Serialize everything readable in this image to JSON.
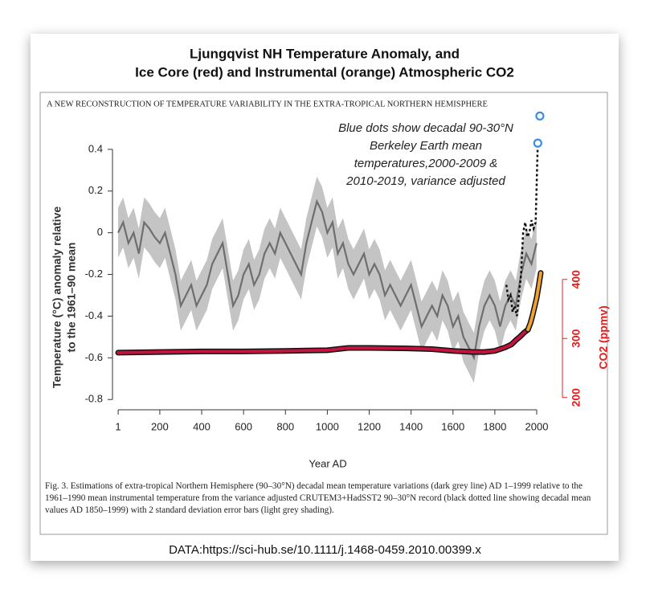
{
  "chart_data": {
    "type": "line",
    "title": [
      "Ljungqvist NH Temperature Anomaly, and",
      "Ice Core (red) and Instrumental (orange) Atmospheric CO2"
    ],
    "header": "A NEW RECONSTRUCTION OF TEMPERATURE VARIABILITY IN THE EXTRA-TROPICAL NORTHERN HEMISPHERE",
    "annotation": [
      "Blue dots show decadal 90-30°N",
      "Berkeley Earth mean",
      "temperatures,2000-2009 &",
      "2010-2019, variance adjusted"
    ],
    "ylabel": [
      "Temperature (°C) anomaly relative",
      "to the 1961–90 mean"
    ],
    "y2label": "CO2 (ppmv)",
    "xlabel": "Year AD",
    "caption": "Fig. 3. Estimations of extra-tropical Northern Hemisphere (90–30°N) decadal mean temperature variations (dark grey line) AD 1–1999 relative to the 1961–1990 mean instrumental temperature from the variance adjusted CRUTEM3+HadSST2 90–30°N record (black dotted line showing decadal mean values AD 1850–1999) with 2 standard deviation error bars (light grey shading).",
    "source": "DATA:https://sci-hub.se/10.1111/j.1468-0459.2010.00399.x",
    "xlim": [
      -26,
      2046
    ],
    "xticks": [
      1,
      200,
      400,
      600,
      800,
      1000,
      1200,
      1400,
      1600,
      1800,
      2000
    ],
    "ylim": [
      -0.83,
      0.6
    ],
    "yticks": [
      -0.8,
      -0.6,
      -0.4,
      -0.2,
      0,
      0.2,
      0.4
    ],
    "y2lim": [
      186,
      691
    ],
    "y2ticks": [
      200,
      300,
      400
    ],
    "series": [
      {
        "style": "band-line",
        "color": "#6e6e6e",
        "band_color": "#c4c4c4",
        "error": 0.12,
        "x": [
          1,
          25,
          50,
          75,
          100,
          125,
          150,
          175,
          200,
          225,
          250,
          275,
          300,
          325,
          350,
          375,
          400,
          425,
          450,
          475,
          500,
          525,
          550,
          575,
          600,
          625,
          650,
          675,
          700,
          725,
          750,
          775,
          800,
          825,
          850,
          875,
          900,
          925,
          950,
          975,
          1000,
          1025,
          1050,
          1075,
          1100,
          1125,
          1150,
          1175,
          1200,
          1225,
          1250,
          1275,
          1300,
          1325,
          1350,
          1375,
          1400,
          1425,
          1450,
          1475,
          1500,
          1525,
          1550,
          1575,
          1600,
          1625,
          1650,
          1675,
          1700,
          1725,
          1750,
          1775,
          1800,
          1825,
          1850,
          1875,
          1900,
          1925,
          1950,
          1975,
          1999
        ],
        "values": [
          0,
          0.05,
          -0.05,
          0,
          -0.1,
          0.05,
          0.02,
          -0.02,
          -0.05,
          0,
          -0.1,
          -0.2,
          -0.35,
          -0.3,
          -0.25,
          -0.35,
          -0.3,
          -0.25,
          -0.15,
          -0.1,
          -0.05,
          -0.2,
          -0.35,
          -0.3,
          -0.2,
          -0.15,
          -0.25,
          -0.2,
          -0.1,
          -0.05,
          -0.1,
          0,
          -0.05,
          -0.1,
          -0.15,
          -0.2,
          -0.05,
          0.05,
          0.15,
          0.1,
          0,
          0.05,
          -0.1,
          -0.05,
          -0.15,
          -0.2,
          -0.15,
          -0.1,
          -0.2,
          -0.15,
          -0.2,
          -0.3,
          -0.25,
          -0.3,
          -0.35,
          -0.3,
          -0.25,
          -0.35,
          -0.45,
          -0.4,
          -0.35,
          -0.4,
          -0.3,
          -0.35,
          -0.45,
          -0.4,
          -0.5,
          -0.55,
          -0.6,
          -0.45,
          -0.35,
          -0.3,
          -0.35,
          -0.45,
          -0.35,
          -0.3,
          -0.35,
          -0.2,
          -0.1,
          -0.15,
          -0.05
        ]
      },
      {
        "style": "dotted",
        "color": "#111111",
        "x": [
          1855,
          1865,
          1875,
          1885,
          1895,
          1905,
          1915,
          1925,
          1935,
          1945,
          1955,
          1965,
          1975,
          1985,
          1995,
          2005
        ],
        "values": [
          -0.25,
          -0.32,
          -0.3,
          -0.38,
          -0.35,
          -0.4,
          -0.3,
          -0.2,
          0,
          0.05,
          -0.02,
          0,
          0.06,
          0.02,
          0.05,
          0.43
        ]
      },
      {
        "style": "circles",
        "color": "#3a8ee6",
        "x": [
          2005,
          2015
        ],
        "values": [
          0.43,
          0.56
        ]
      },
      {
        "style": "thick",
        "axis": "y2",
        "color": "#c2143f",
        "x": [
          1,
          200,
          400,
          600,
          800,
          1000,
          1100,
          1200,
          1400,
          1500,
          1600,
          1700,
          1750,
          1800,
          1850,
          1880,
          1900,
          1920,
          1940,
          1958
        ],
        "values": [
          276,
          277,
          278,
          278,
          279,
          280,
          284,
          284,
          283,
          282,
          279,
          277,
          277,
          279,
          285,
          290,
          297,
          303,
          310,
          315
        ]
      },
      {
        "style": "thick",
        "axis": "y2",
        "color": "#f0a030",
        "x": [
          1958,
          1970,
          1980,
          1990,
          2000,
          2010,
          2019
        ],
        "values": [
          315,
          326,
          339,
          354,
          369,
          390,
          411
        ]
      }
    ]
  }
}
